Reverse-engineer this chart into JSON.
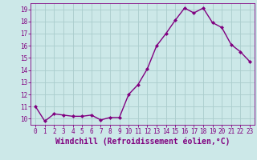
{
  "x": [
    0,
    1,
    2,
    3,
    4,
    5,
    6,
    7,
    8,
    9,
    10,
    11,
    12,
    13,
    14,
    15,
    16,
    17,
    18,
    19,
    20,
    21,
    22,
    23
  ],
  "y": [
    11.0,
    9.8,
    10.4,
    10.3,
    10.2,
    10.2,
    10.3,
    9.9,
    10.1,
    10.1,
    12.0,
    12.8,
    14.1,
    16.0,
    17.0,
    18.1,
    19.1,
    18.7,
    19.1,
    17.9,
    17.5,
    16.1,
    15.5,
    14.7
  ],
  "line_color": "#800080",
  "marker": "D",
  "marker_size": 2.0,
  "bg_color": "#cce8e8",
  "grid_color": "#aacccc",
  "xlabel": "Windchill (Refroidissement éolien,°C)",
  "xlabel_color": "#800080",
  "xlim": [
    -0.5,
    23.5
  ],
  "ylim": [
    9.5,
    19.5
  ],
  "yticks": [
    10,
    11,
    12,
    13,
    14,
    15,
    16,
    17,
    18,
    19
  ],
  "xticks": [
    0,
    1,
    2,
    3,
    4,
    5,
    6,
    7,
    8,
    9,
    10,
    11,
    12,
    13,
    14,
    15,
    16,
    17,
    18,
    19,
    20,
    21,
    22,
    23
  ],
  "tick_color": "#800080",
  "tick_label_fontsize": 5.5,
  "xlabel_fontsize": 7.0,
  "linewidth": 1.0
}
